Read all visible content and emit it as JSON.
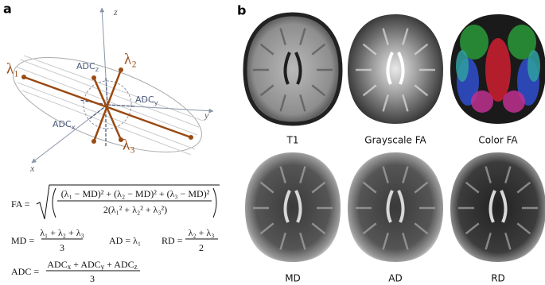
{
  "panel_a": {
    "label": "a",
    "axes": {
      "x": "x",
      "y": "y",
      "z": "z"
    },
    "eigenvalues": [
      "λ₁",
      "λ₂",
      "λ₃"
    ],
    "adc_labels": [
      {
        "runs": [
          {
            "t": "ADC"
          },
          {
            "t": "z",
            "sub": true
          }
        ]
      },
      {
        "runs": [
          {
            "t": "ADC"
          },
          {
            "t": "y",
            "sub": true
          }
        ]
      },
      {
        "runs": [
          {
            "t": "ADC"
          },
          {
            "t": "x",
            "sub": true
          }
        ]
      }
    ],
    "formulas": {
      "fa": {
        "lhs": "FA =",
        "numerator": "(λ₁ − MD)² + (λ₂ − MD)² + (λ₃ − MD)²",
        "denominator": "2(λ₁² + λ₂² + λ₃²)"
      },
      "md": {
        "lhs": "MD =",
        "numerator": "λ₁ + λ₂ + λ₃",
        "denominator": "3"
      },
      "ad": "AD = λ₁",
      "rd": {
        "lhs": "RD =",
        "numerator": "λ₂ + λ₃",
        "denominator": "2"
      },
      "adc": {
        "lhs": "ADC =",
        "numerator": {
          "runs": [
            {
              "t": "ADC"
            },
            {
              "t": "x",
              "sub": true
            },
            {
              "t": " + ADC"
            },
            {
              "t": "y",
              "sub": true
            },
            {
              "t": " + ADC"
            },
            {
              "t": "z",
              "sub": true
            }
          ]
        },
        "denominator": "3"
      }
    }
  },
  "panel_b": {
    "label": "b",
    "images": [
      {
        "caption": "T1"
      },
      {
        "caption": "Grayscale FA"
      },
      {
        "caption": "Color FA"
      },
      {
        "caption": "MD"
      },
      {
        "caption": "AD"
      },
      {
        "caption": "RD"
      }
    ]
  }
}
